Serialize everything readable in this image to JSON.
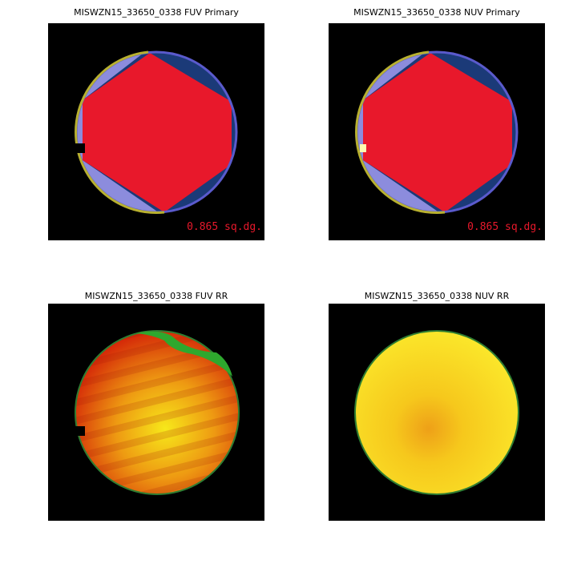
{
  "panels": [
    {
      "title": "MISWZN15_33650_0338 FUV Primary",
      "area_label": "0.865 sq.dg."
    },
    {
      "title": "MISWZN15_33650_0338 NUV Primary",
      "area_label": "0.865 sq.dg."
    },
    {
      "title": "MISWZN15_33650_0338 FUV RR"
    },
    {
      "title": "MISWZN15_33650_0338 NUV RR"
    }
  ]
}
